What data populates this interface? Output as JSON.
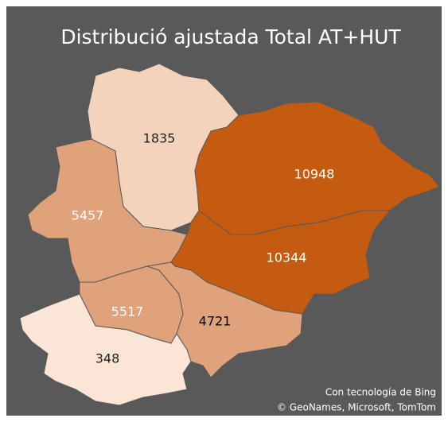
{
  "chart_data": {
    "type": "choropleth",
    "title": "Distribució ajustada Total AT+HUT",
    "values": [
      1835,
      10948,
      5457,
      10344,
      5517,
      4721,
      348
    ],
    "colors": [
      "#f3d3bc",
      "#c55a11",
      "#dfa27a",
      "#c55a11",
      "#dfa27a",
      "#dfa27a",
      "#fae5d6"
    ],
    "label_colors": [
      "#222222",
      "#ffffff",
      "#ffffff",
      "#ffffff",
      "#ffffff",
      "#000000",
      "#222222"
    ],
    "credits": [
      "Con tecnología de Bing",
      "© GeoNames, Microsoft, TomTom"
    ]
  }
}
